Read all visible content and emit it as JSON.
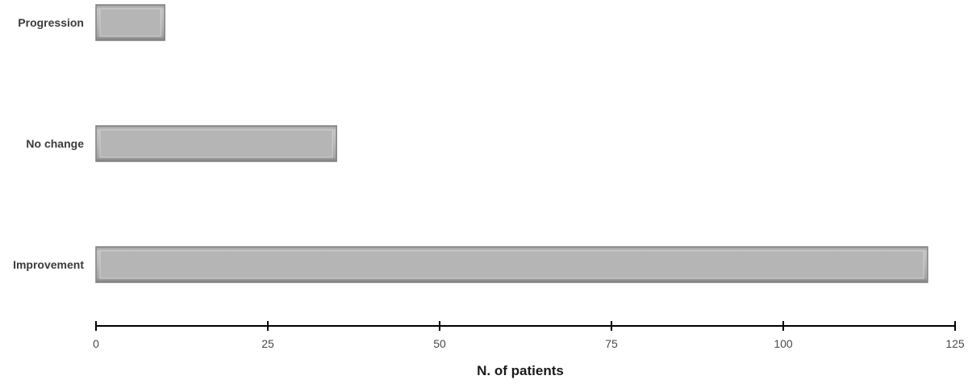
{
  "chart_data": {
    "type": "bar",
    "orientation": "horizontal",
    "categories": [
      "Progression",
      "No change",
      "Improvement"
    ],
    "values": [
      10,
      35,
      121
    ],
    "xlabel": "N. of patients",
    "ylabel": "",
    "xlim": [
      0,
      125
    ],
    "xticks": [
      0,
      25,
      50,
      75,
      100,
      125
    ],
    "grid": false,
    "bar_color": "#b5b5b5",
    "bar_edge_color": "#808080"
  }
}
